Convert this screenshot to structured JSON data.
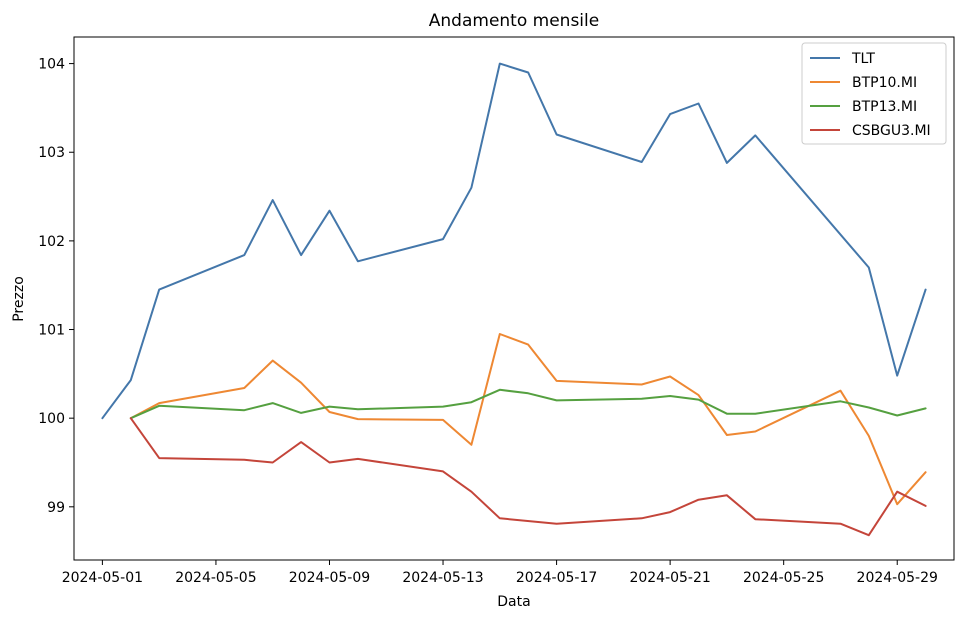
{
  "chart_data": {
    "type": "line",
    "title": "Andamento mensile",
    "xlabel": "Data",
    "ylabel": "Prezzo",
    "xlim": [
      "2024-04-30",
      "2024-05-31"
    ],
    "ylim": [
      98.4,
      104.3
    ],
    "x_ticks": [
      "2024-05-01",
      "2024-05-05",
      "2024-05-09",
      "2024-05-13",
      "2024-05-17",
      "2024-05-21",
      "2024-05-25",
      "2024-05-29"
    ],
    "y_ticks": [
      99,
      100,
      101,
      102,
      103,
      104
    ],
    "grid": false,
    "legend_position": "top-right",
    "series": [
      {
        "name": "TLT",
        "color": "#4477aa",
        "points": [
          [
            "2024-05-01",
            100.0
          ],
          [
            "2024-05-02",
            100.43
          ],
          [
            "2024-05-03",
            101.45
          ],
          [
            "2024-05-06",
            101.84
          ],
          [
            "2024-05-07",
            102.46
          ],
          [
            "2024-05-08",
            101.84
          ],
          [
            "2024-05-09",
            102.34
          ],
          [
            "2024-05-10",
            101.77
          ],
          [
            "2024-05-13",
            102.02
          ],
          [
            "2024-05-14",
            102.6
          ],
          [
            "2024-05-15",
            104.0
          ],
          [
            "2024-05-16",
            103.9
          ],
          [
            "2024-05-17",
            103.2
          ],
          [
            "2024-05-20",
            102.89
          ],
          [
            "2024-05-21",
            103.43
          ],
          [
            "2024-05-22",
            103.55
          ],
          [
            "2024-05-23",
            102.88
          ],
          [
            "2024-05-24",
            103.19
          ],
          [
            "2024-05-28",
            101.7
          ],
          [
            "2024-05-29",
            100.48
          ],
          [
            "2024-05-30",
            101.45
          ]
        ]
      },
      {
        "name": "BTP10.MI",
        "color": "#ee8833",
        "points": [
          [
            "2024-05-02",
            100.0
          ],
          [
            "2024-05-03",
            100.17
          ],
          [
            "2024-05-06",
            100.34
          ],
          [
            "2024-05-07",
            100.65
          ],
          [
            "2024-05-08",
            100.4
          ],
          [
            "2024-05-09",
            100.07
          ],
          [
            "2024-05-10",
            99.99
          ],
          [
            "2024-05-13",
            99.98
          ],
          [
            "2024-05-14",
            99.7
          ],
          [
            "2024-05-15",
            100.95
          ],
          [
            "2024-05-16",
            100.83
          ],
          [
            "2024-05-17",
            100.42
          ],
          [
            "2024-05-20",
            100.38
          ],
          [
            "2024-05-21",
            100.47
          ],
          [
            "2024-05-22",
            100.26
          ],
          [
            "2024-05-23",
            99.81
          ],
          [
            "2024-05-24",
            99.85
          ],
          [
            "2024-05-27",
            100.31
          ],
          [
            "2024-05-28",
            99.8
          ],
          [
            "2024-05-29",
            99.03
          ],
          [
            "2024-05-30",
            99.39
          ]
        ]
      },
      {
        "name": "BTP13.MI",
        "color": "#55a040",
        "points": [
          [
            "2024-05-02",
            100.0
          ],
          [
            "2024-05-03",
            100.14
          ],
          [
            "2024-05-06",
            100.09
          ],
          [
            "2024-05-07",
            100.17
          ],
          [
            "2024-05-08",
            100.06
          ],
          [
            "2024-05-09",
            100.13
          ],
          [
            "2024-05-10",
            100.1
          ],
          [
            "2024-05-13",
            100.13
          ],
          [
            "2024-05-14",
            100.18
          ],
          [
            "2024-05-15",
            100.32
          ],
          [
            "2024-05-16",
            100.28
          ],
          [
            "2024-05-17",
            100.2
          ],
          [
            "2024-05-20",
            100.22
          ],
          [
            "2024-05-21",
            100.25
          ],
          [
            "2024-05-22",
            100.21
          ],
          [
            "2024-05-23",
            100.05
          ],
          [
            "2024-05-24",
            100.05
          ],
          [
            "2024-05-27",
            100.19
          ],
          [
            "2024-05-28",
            100.12
          ],
          [
            "2024-05-29",
            100.03
          ],
          [
            "2024-05-30",
            100.11
          ]
        ]
      },
      {
        "name": "CSBGU3.MI",
        "color": "#c4453a",
        "points": [
          [
            "2024-05-02",
            100.0
          ],
          [
            "2024-05-03",
            99.55
          ],
          [
            "2024-05-06",
            99.53
          ],
          [
            "2024-05-07",
            99.5
          ],
          [
            "2024-05-08",
            99.73
          ],
          [
            "2024-05-09",
            99.5
          ],
          [
            "2024-05-10",
            99.54
          ],
          [
            "2024-05-13",
            99.4
          ],
          [
            "2024-05-14",
            99.17
          ],
          [
            "2024-05-15",
            98.87
          ],
          [
            "2024-05-17",
            98.81
          ],
          [
            "2024-05-20",
            98.87
          ],
          [
            "2024-05-21",
            98.94
          ],
          [
            "2024-05-22",
            99.08
          ],
          [
            "2024-05-23",
            99.13
          ],
          [
            "2024-05-24",
            98.86
          ],
          [
            "2024-05-27",
            98.81
          ],
          [
            "2024-05-28",
            98.68
          ],
          [
            "2024-05-29",
            99.17
          ],
          [
            "2024-05-30",
            99.01
          ]
        ]
      }
    ]
  }
}
